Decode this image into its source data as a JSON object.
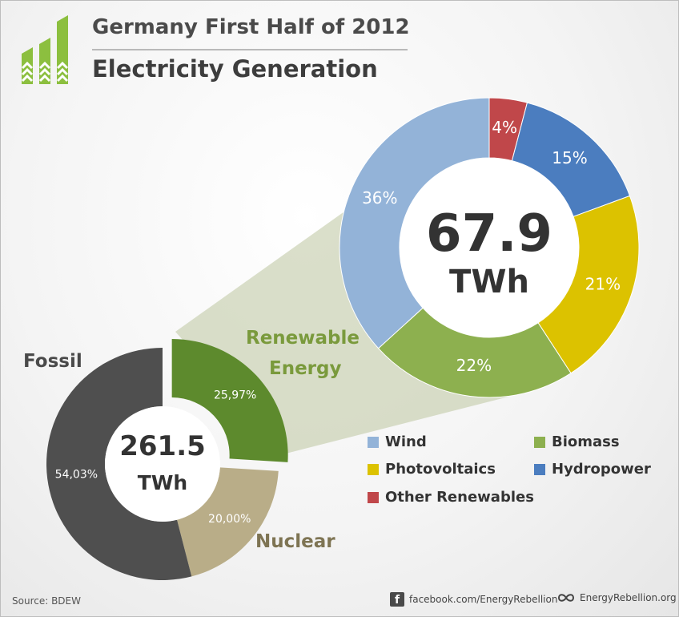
{
  "header": {
    "title_line1": "Germany First Half of 2012",
    "title_line2": "Electricity Generation"
  },
  "colors": {
    "accent_green": "#7a9a3c",
    "logo_green": "#8cbf3f",
    "fossil": "#4f4f4f",
    "nuclear": "#b9ad88",
    "renewable": "#5d8a2d",
    "wind": "#93b3d8",
    "hydropower": "#4b7dbf",
    "photovoltaics": "#dcc200",
    "biomass": "#8db04f",
    "other_renewables": "#c0474a"
  },
  "chart_data": [
    {
      "type": "pie",
      "variant": "donut",
      "center_value": "261.5",
      "center_unit": "TWh",
      "slices": [
        {
          "category": "Renewable Energy",
          "value": 25.97,
          "display_label": "25,97%",
          "color": "#5d8a2d",
          "exploded": true
        },
        {
          "category": "Nuclear",
          "value": 20.0,
          "display_label": "20,00%",
          "color": "#b9ad88"
        },
        {
          "category": "Fossil",
          "value": 54.03,
          "display_label": "54,03%",
          "color": "#4f4f4f"
        }
      ],
      "category_labels": {
        "fossil": "Fossil",
        "nuclear": "Nuclear",
        "renewable_line1": "Renewable",
        "renewable_line2": "Energy"
      }
    },
    {
      "type": "pie",
      "variant": "donut",
      "center_value": "67.9",
      "center_unit": "TWh",
      "slices": [
        {
          "category": "Other Renewables",
          "value": 4,
          "display_label": "4%",
          "color": "#c0474a"
        },
        {
          "category": "Hydropower",
          "value": 15,
          "display_label": "15%",
          "color": "#4b7dbf"
        },
        {
          "category": "Photovoltaics",
          "value": 21,
          "display_label": "21%",
          "color": "#dcc200"
        },
        {
          "category": "Biomass",
          "value": 22,
          "display_label": "22%",
          "color": "#8db04f"
        },
        {
          "category": "Wind",
          "value": 36,
          "display_label": "36%",
          "color": "#93b3d8"
        }
      ]
    }
  ],
  "legend": {
    "items": [
      {
        "label": "Wind",
        "color": "#93b3d8"
      },
      {
        "label": "Biomass",
        "color": "#8db04f"
      },
      {
        "label": "Photovoltaics",
        "color": "#dcc200"
      },
      {
        "label": "Hydropower",
        "color": "#4b7dbf"
      },
      {
        "label": "Other Renewables",
        "color": "#c0474a"
      }
    ]
  },
  "footer": {
    "source": "Source: BDEW",
    "facebook_icon": "facebook-icon",
    "facebook_text": "facebook.com/EnergyRebellion",
    "site_icon": "infinity-icon",
    "site_text": "EnergyRebellion.org"
  }
}
